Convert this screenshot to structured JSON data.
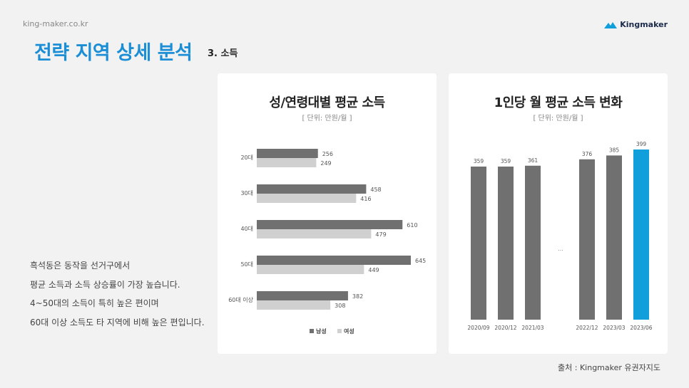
{
  "header": {
    "site_url": "king-maker.co.kr",
    "brand": "Kingmaker",
    "title": "전략 지역 상세 분석",
    "section": "3. 소득"
  },
  "summary_lines": [
    "흑석동은 동작을 선거구에서",
    "평균 소득과 소득 상승률이 가장 높습니다.",
    "4~50대의 소득이 특히 높은 편이며",
    "60대 이상 소득도 타 지역에 비해 높은 편입니다."
  ],
  "source": "출처 : Kingmaker 유권자지도",
  "chart_data": [
    {
      "type": "bar",
      "orientation": "horizontal",
      "title": "성/연령대별 평균 소득",
      "unit": "[ 단위: 만원/월 ]",
      "categories": [
        "20대",
        "30대",
        "40대",
        "50대",
        "60대 이상"
      ],
      "series": [
        {
          "name": "남성",
          "values": [
            256,
            458,
            610,
            645,
            382
          ],
          "color": "#707070"
        },
        {
          "name": "여성",
          "values": [
            249,
            416,
            479,
            449,
            308
          ],
          "color": "#d0d0d0"
        }
      ],
      "xlim": [
        0,
        700
      ],
      "legend": "bottom",
      "grid": false
    },
    {
      "type": "bar",
      "title": "1인당 월 평균 소득 변화",
      "unit": "[ 단위: 만원/월 ]",
      "categories": [
        "2020/09",
        "2020/12",
        "2021/03",
        "2022/12",
        "2023/03",
        "2023/06"
      ],
      "values": [
        359,
        359,
        361,
        376,
        385,
        399
      ],
      "colors": [
        "#707070",
        "#707070",
        "#707070",
        "#707070",
        "#707070",
        "#119fdb"
      ],
      "ellipsis": "...",
      "ylim": [
        0,
        410
      ],
      "grid": false
    }
  ]
}
